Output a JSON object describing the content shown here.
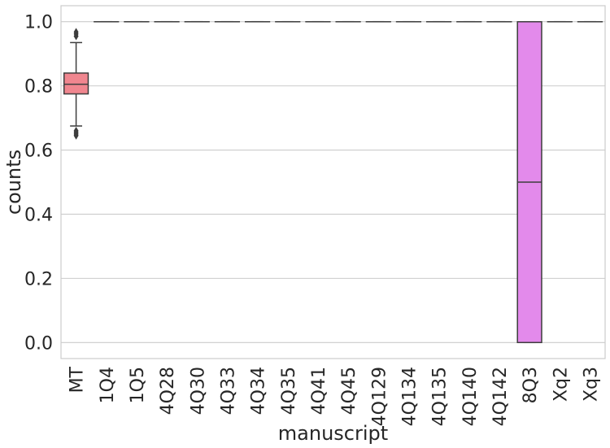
{
  "chart_data": {
    "type": "box",
    "xlabel": "manuscript",
    "ylabel": "counts",
    "ylim": [
      -0.05,
      1.05
    ],
    "yticks": [
      0.0,
      0.2,
      0.4,
      0.6,
      0.8,
      1.0
    ],
    "ytick_labels": [
      "0.0",
      "0.2",
      "0.4",
      "0.6",
      "0.8",
      "1.0"
    ],
    "grid": "horizontal",
    "categories": [
      "MT",
      "1Q4",
      "1Q5",
      "4Q28",
      "4Q30",
      "4Q33",
      "4Q34",
      "4Q35",
      "4Q41",
      "4Q45",
      "4Q129",
      "4Q134",
      "4Q135",
      "4Q140",
      "4Q142",
      "8Q3",
      "Xq2",
      "Xq3"
    ],
    "boxes": [
      {
        "category": "MT",
        "min": 0.675,
        "q1": 0.775,
        "median": 0.805,
        "q3": 0.84,
        "max": 0.935,
        "outliers": [
          0.645,
          0.65,
          0.655,
          0.66,
          0.955,
          0.962,
          0.968
        ],
        "color": "#f0868f"
      },
      {
        "category": "1Q4",
        "min": 1.0,
        "q1": 1.0,
        "median": 1.0,
        "q3": 1.0,
        "max": 1.0,
        "outliers": [],
        "color": "#ef8a62"
      },
      {
        "category": "1Q5",
        "min": 1.0,
        "q1": 1.0,
        "median": 1.0,
        "q3": 1.0,
        "max": 1.0,
        "outliers": [],
        "color": "#d99a3a"
      },
      {
        "category": "4Q28",
        "min": 1.0,
        "q1": 1.0,
        "median": 1.0,
        "q3": 1.0,
        "max": 1.0,
        "outliers": [],
        "color": "#bfa431"
      },
      {
        "category": "4Q30",
        "min": 1.0,
        "q1": 1.0,
        "median": 1.0,
        "q3": 1.0,
        "max": 1.0,
        "outliers": [],
        "color": "#a0ad33"
      },
      {
        "category": "4Q33",
        "min": 1.0,
        "q1": 1.0,
        "median": 1.0,
        "q3": 1.0,
        "max": 1.0,
        "outliers": [],
        "color": "#6db83a"
      },
      {
        "category": "4Q34",
        "min": 1.0,
        "q1": 1.0,
        "median": 1.0,
        "q3": 1.0,
        "max": 1.0,
        "outliers": [],
        "color": "#3bbd6c"
      },
      {
        "category": "4Q35",
        "min": 1.0,
        "q1": 1.0,
        "median": 1.0,
        "q3": 1.0,
        "max": 1.0,
        "outliers": [],
        "color": "#36b996"
      },
      {
        "category": "4Q41",
        "min": 1.0,
        "q1": 1.0,
        "median": 1.0,
        "q3": 1.0,
        "max": 1.0,
        "outliers": [],
        "color": "#38b5ab"
      },
      {
        "category": "4Q45",
        "min": 1.0,
        "q1": 1.0,
        "median": 1.0,
        "q3": 1.0,
        "max": 1.0,
        "outliers": [],
        "color": "#3ab1c0"
      },
      {
        "category": "4Q129",
        "min": 1.0,
        "q1": 1.0,
        "median": 1.0,
        "q3": 1.0,
        "max": 1.0,
        "outliers": [],
        "color": "#3daed8"
      },
      {
        "category": "4Q134",
        "min": 1.0,
        "q1": 1.0,
        "median": 1.0,
        "q3": 1.0,
        "max": 1.0,
        "outliers": [],
        "color": "#4ba6ee"
      },
      {
        "category": "4Q135",
        "min": 1.0,
        "q1": 1.0,
        "median": 1.0,
        "q3": 1.0,
        "max": 1.0,
        "outliers": [],
        "color": "#8a96f5"
      },
      {
        "category": "4Q140",
        "min": 1.0,
        "q1": 1.0,
        "median": 1.0,
        "q3": 1.0,
        "max": 1.0,
        "outliers": [],
        "color": "#b387f5"
      },
      {
        "category": "4Q142",
        "min": 1.0,
        "q1": 1.0,
        "median": 1.0,
        "q3": 1.0,
        "max": 1.0,
        "outliers": [],
        "color": "#d47bef"
      },
      {
        "category": "8Q3",
        "min": 0.0,
        "q1": 0.0,
        "median": 0.5,
        "q3": 1.0,
        "max": 1.0,
        "outliers": [],
        "color": "#e38aeb"
      },
      {
        "category": "Xq2",
        "min": 1.0,
        "q1": 1.0,
        "median": 1.0,
        "q3": 1.0,
        "max": 1.0,
        "outliers": [],
        "color": "#f07ac6"
      },
      {
        "category": "Xq3",
        "min": 1.0,
        "q1": 1.0,
        "median": 1.0,
        "q3": 1.0,
        "max": 1.0,
        "outliers": [],
        "color": "#f3849f"
      }
    ]
  }
}
